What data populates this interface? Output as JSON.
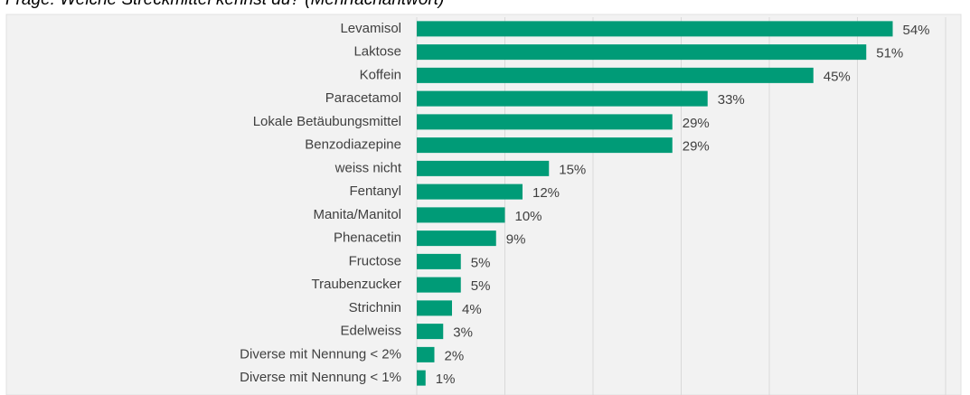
{
  "chart_data": {
    "type": "barh",
    "title": "Frage: Welche Streckmittel kennst du? (Mehrfachantwort)",
    "categories": [
      "Levamisol",
      "Laktose",
      "Koffein",
      "Paracetamol",
      "Lokale Betäubungsmittel",
      "Benzodiazepine",
      "weiss nicht",
      "Fentanyl",
      "Manita/Manitol",
      "Phenacetin",
      "Fructose",
      "Traubenzucker",
      "Strichnin",
      "Edelweiss",
      "Diverse mit Nennung < 2%",
      "Diverse mit Nennung < 1%"
    ],
    "values": [
      54,
      51,
      45,
      33,
      29,
      29,
      15,
      12,
      10,
      9,
      5,
      5,
      4,
      3,
      2,
      1
    ],
    "value_labels": [
      "54%",
      "51%",
      "45%",
      "33%",
      "29%",
      "29%",
      "15%",
      "12%",
      "10%",
      "9%",
      "5%",
      "5%",
      "4%",
      "3%",
      "2%",
      "1%"
    ],
    "color": "#009b77",
    "xlim": [
      0,
      60
    ],
    "xticks": [
      0,
      10,
      20,
      30,
      40,
      50,
      60
    ],
    "grid": true
  }
}
